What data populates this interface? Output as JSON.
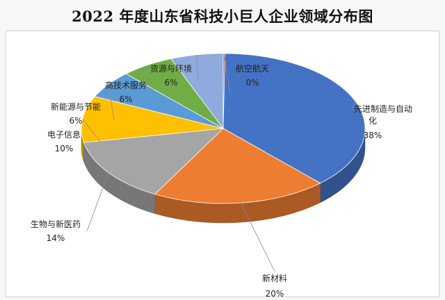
{
  "chart_data": {
    "type": "pie",
    "title": "2022 年度山东省科技小巨人企业领域分布图",
    "slices": [
      {
        "name": "先进制造与自动化",
        "value": 38,
        "label": "38%",
        "color": "#4472c4"
      },
      {
        "name": "新材料",
        "value": 20,
        "label": "20%",
        "color": "#ed7d31"
      },
      {
        "name": "生物与新医药",
        "value": 14,
        "label": "14%",
        "color": "#a5a5a5"
      },
      {
        "name": "电子信息",
        "value": 10,
        "label": "10%",
        "color": "#ffc000"
      },
      {
        "name": "新能源与节能",
        "value": 6,
        "label": "6%",
        "color": "#5b9bd5"
      },
      {
        "name": "高技术服务",
        "value": 6,
        "label": "6%",
        "color": "#70ad47"
      },
      {
        "name": "资源与环境",
        "value": 6,
        "label": "6%",
        "color": "#8faadc"
      },
      {
        "name": "航空航天",
        "value": 0,
        "label": "0%",
        "color": "#c55a5a"
      }
    ],
    "three_d": true,
    "legend": "none",
    "data_labels": "outside with leader lines"
  }
}
